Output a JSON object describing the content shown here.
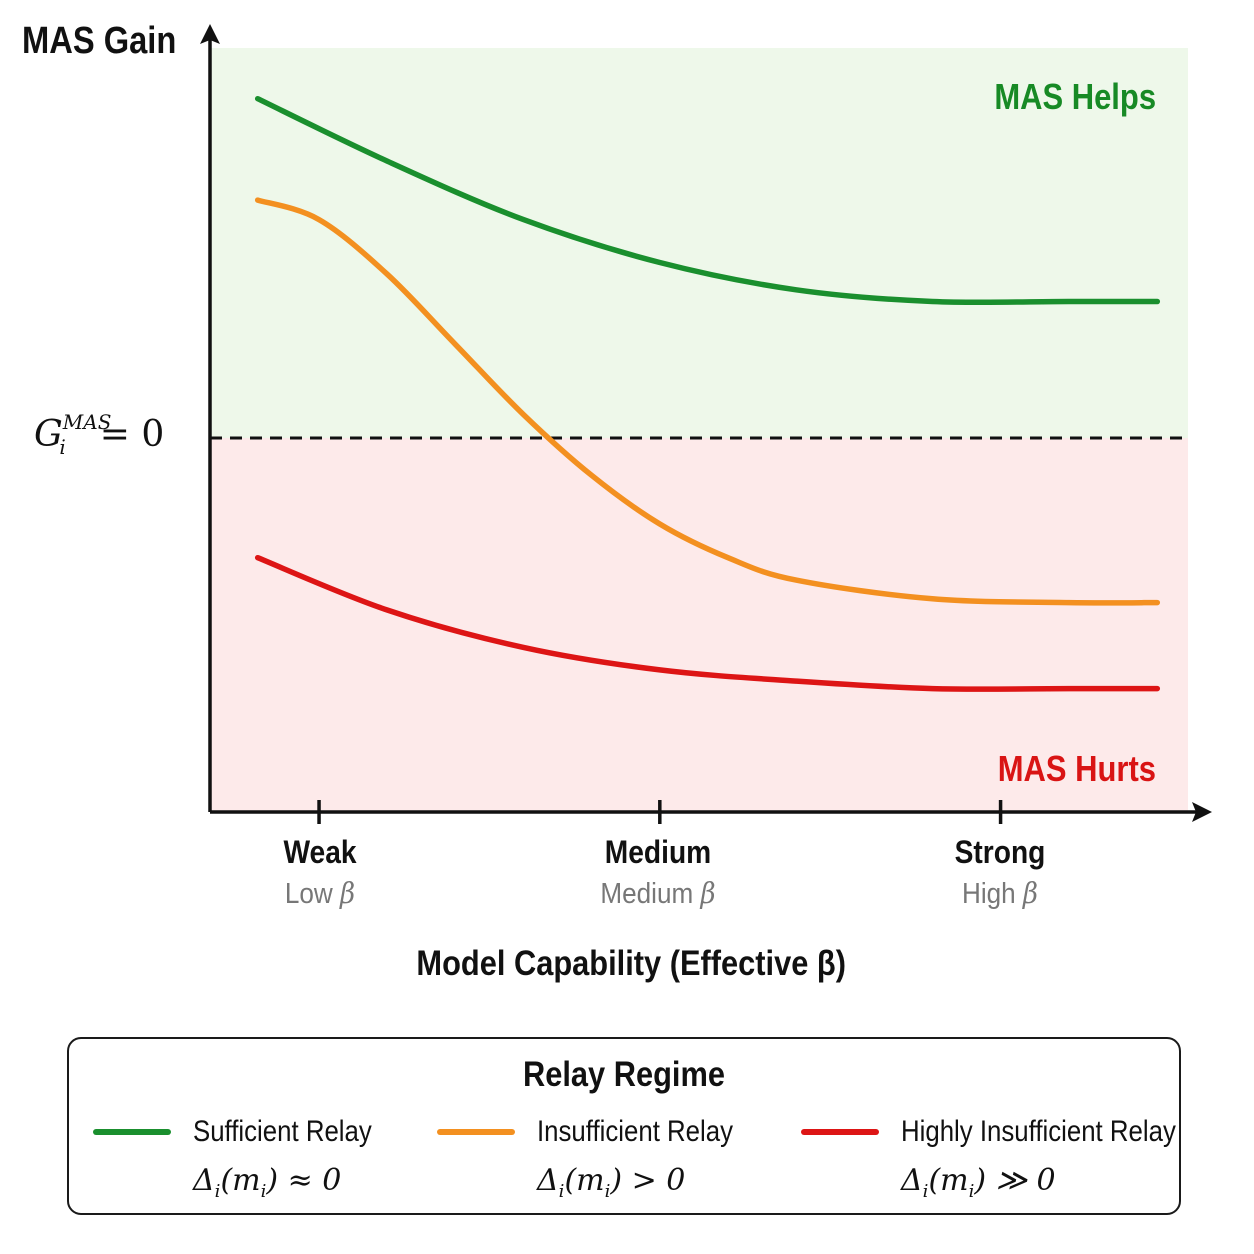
{
  "chart_data": {
    "type": "line",
    "ylabel": "MAS Gain",
    "xlabel": "Model Capability (Effective β)",
    "zero_line_label": {
      "base": "G",
      "sub": "i",
      "sup": "MAS",
      "rest": "= 0"
    },
    "regions": {
      "above": "MAS Helps",
      "below": "MAS Hurts"
    },
    "ticks": [
      {
        "label": "Weak",
        "sub": "Low",
        "x": 1
      },
      {
        "label": "Medium",
        "sub": "Medium",
        "x": 2
      },
      {
        "label": "Strong",
        "sub": "High",
        "x": 3
      }
    ],
    "beta_symbol": "β",
    "xlim": [
      0.68,
      3.55
    ],
    "ylim": [
      -1.0,
      1.0
    ],
    "series": [
      {
        "name": "Sufficient Relay",
        "formula": "Δi(mi) ≈ 0",
        "color": "#1a8f2e",
        "x": [
          0.82,
          1.2,
          1.6,
          2.0,
          2.4,
          2.8,
          3.2,
          3.46
        ],
        "y": [
          0.87,
          0.71,
          0.56,
          0.45,
          0.38,
          0.35,
          0.35,
          0.35
        ]
      },
      {
        "name": "Insufficient Relay",
        "formula": "Δi(mi) > 0",
        "color": "#f39020",
        "x": [
          0.82,
          1.0,
          1.2,
          1.4,
          1.6,
          1.8,
          2.0,
          2.2,
          2.4,
          2.8,
          3.2,
          3.46
        ],
        "y": [
          0.61,
          0.56,
          0.42,
          0.24,
          0.06,
          -0.1,
          -0.23,
          -0.32,
          -0.38,
          -0.43,
          -0.44,
          -0.44
        ]
      },
      {
        "name": "Highly Insufficient Relay",
        "formula": "Δi(mi) ≫ 0",
        "color": "#dd1515",
        "x": [
          0.82,
          1.2,
          1.6,
          2.0,
          2.4,
          2.8,
          3.2,
          3.46
        ],
        "y": [
          -0.32,
          -0.46,
          -0.56,
          -0.62,
          -0.65,
          -0.67,
          -0.67,
          -0.67
        ]
      }
    ],
    "legend": {
      "title": "Relay Regime",
      "placement": "bottom"
    },
    "grid": false
  },
  "colors": {
    "helps_bg": "#eef8ea",
    "hurts_bg": "#fdeaea",
    "helps_text": "#178a25",
    "hurts_text": "#d91414"
  }
}
